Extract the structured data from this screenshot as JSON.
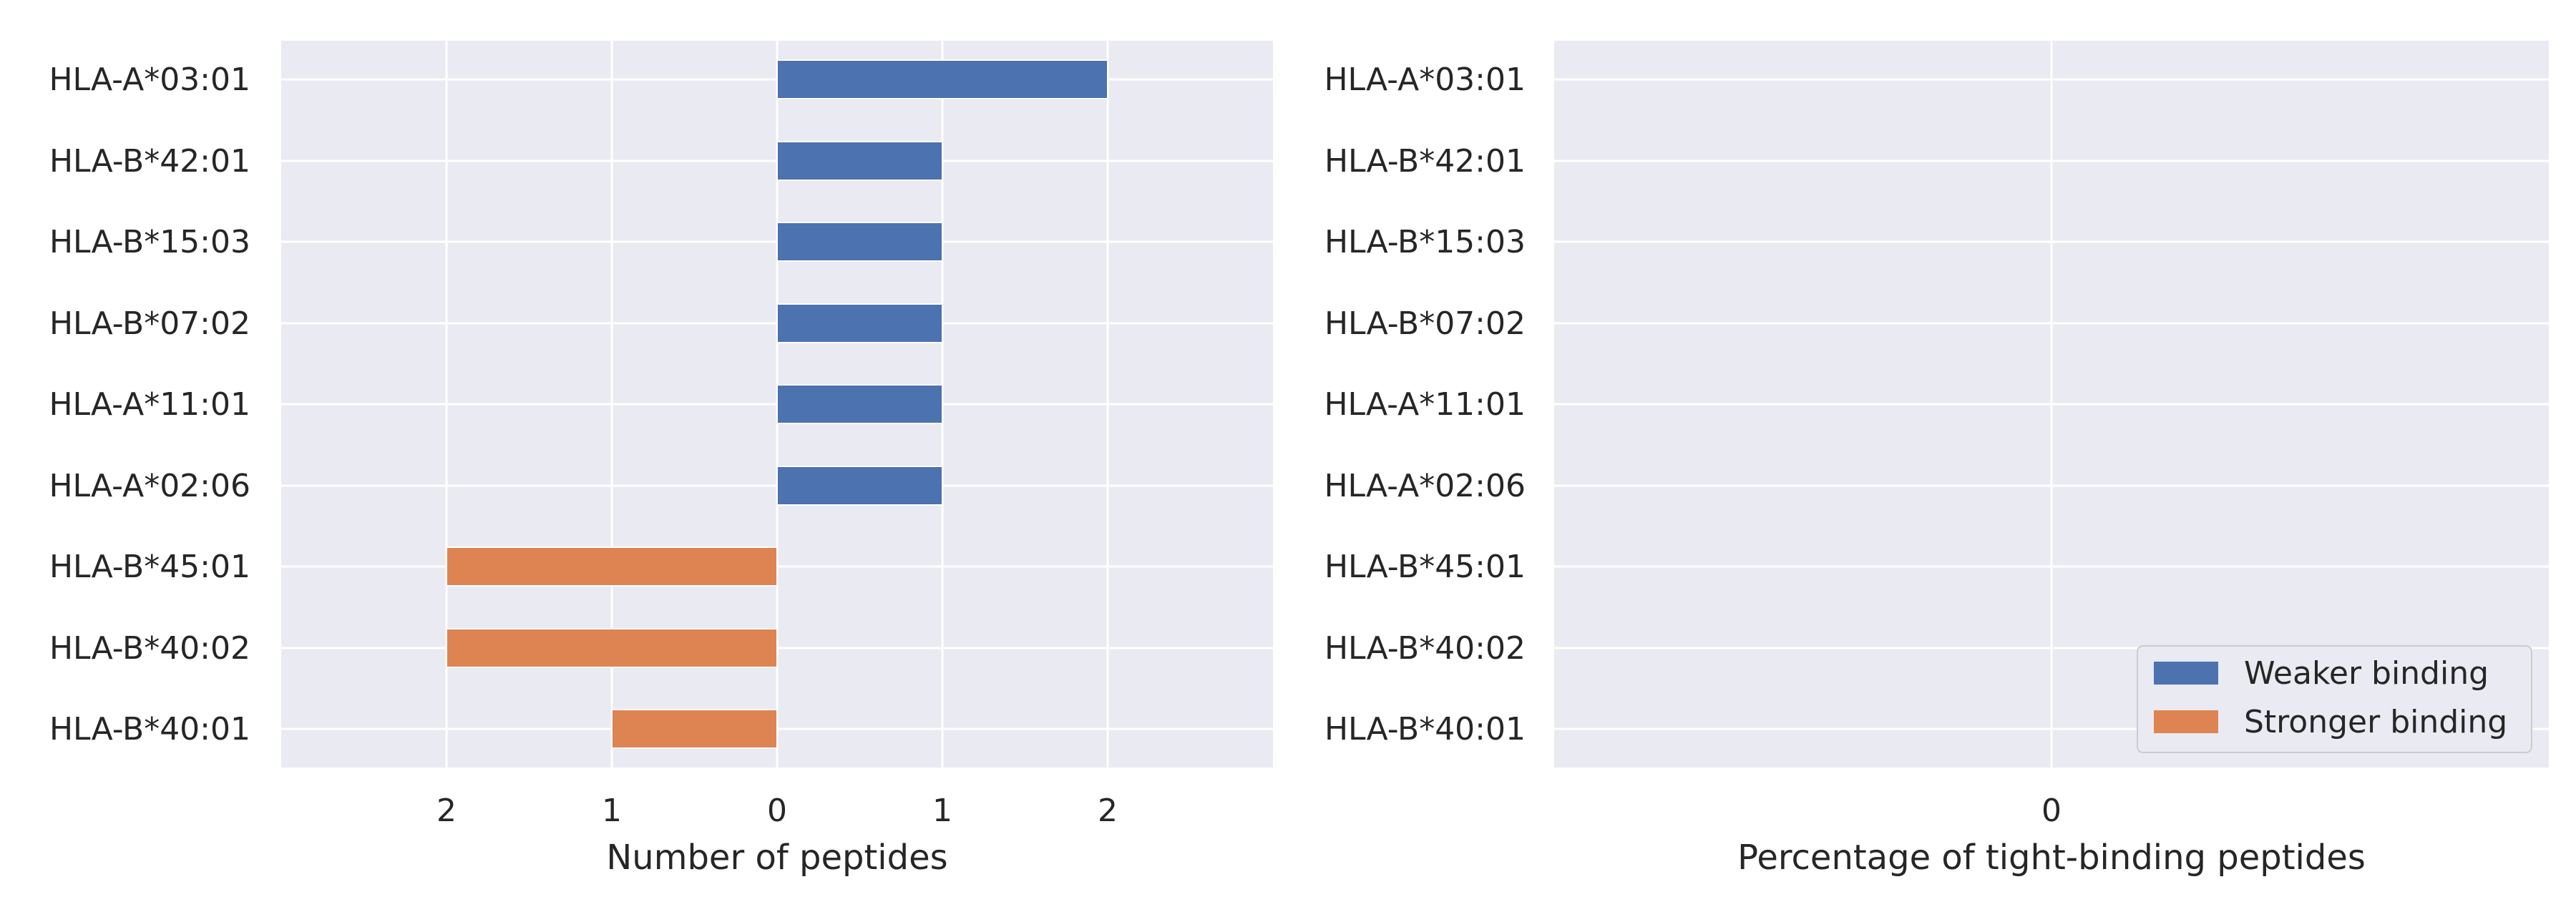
{
  "chart_data": [
    {
      "type": "bar",
      "orientation": "horizontal",
      "layout": "diverging",
      "categories": [
        "HLA-A*03:01",
        "HLA-B*42:01",
        "HLA-B*15:03",
        "HLA-B*07:02",
        "HLA-A*11:01",
        "HLA-A*02:06",
        "HLA-B*45:01",
        "HLA-B*40:02",
        "HLA-B*40:01"
      ],
      "series": [
        {
          "name": "Weaker binding",
          "color": "#4c72b0",
          "direction": "right",
          "values": [
            2,
            1,
            1,
            1,
            1,
            1,
            0,
            0,
            0
          ]
        },
        {
          "name": "Stronger binding",
          "color": "#dd8452",
          "direction": "left",
          "values": [
            0,
            0,
            0,
            0,
            0,
            0,
            2,
            2,
            1
          ]
        }
      ],
      "xlim": [
        -3,
        3
      ],
      "xticks": [
        -2,
        -1,
        0,
        1,
        2
      ],
      "xtick_labels": [
        "2",
        "1",
        "0",
        "1",
        "2"
      ],
      "xlabel": "Number of peptides",
      "ylabel": "",
      "title": "",
      "grid": true,
      "background": "#eaeaf2"
    },
    {
      "type": "bar",
      "orientation": "horizontal",
      "categories": [
        "HLA-A*03:01",
        "HLA-B*42:01",
        "HLA-B*15:03",
        "HLA-B*07:02",
        "HLA-A*11:01",
        "HLA-A*02:06",
        "HLA-B*45:01",
        "HLA-B*40:02",
        "HLA-B*40:01"
      ],
      "series": [
        {
          "name": "Weaker binding",
          "color": "#4c72b0",
          "values": [
            0,
            0,
            0,
            0,
            0,
            0,
            0,
            0,
            0
          ]
        },
        {
          "name": "Stronger binding",
          "color": "#dd8452",
          "values": [
            0,
            0,
            0,
            0,
            0,
            0,
            0,
            0,
            0
          ]
        }
      ],
      "xticks": [
        0
      ],
      "xtick_labels": [
        "0"
      ],
      "xlabel": "Percentage of tight-binding peptides",
      "ylabel": "",
      "title": "",
      "grid": true,
      "background": "#eaeaf2",
      "legend": {
        "placement": "lower-right",
        "entries": [
          {
            "label": "Weaker binding",
            "color": "#4c72b0"
          },
          {
            "label": "Stronger binding",
            "color": "#dd8452"
          }
        ]
      }
    }
  ]
}
